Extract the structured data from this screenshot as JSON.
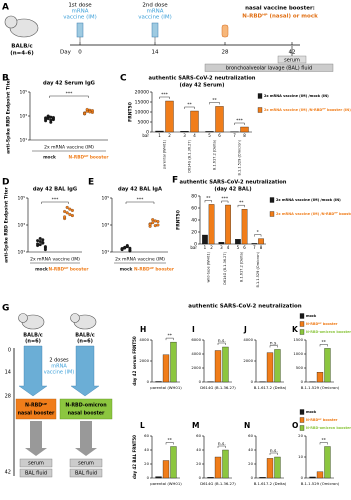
{
  "panel_a": {
    "letter": "A",
    "mouse": [
      "BALB/c",
      "(n=4-6)"
    ],
    "dose1": [
      "1st dose",
      "mRNA",
      "vaccine (IM)"
    ],
    "dose2": [
      "2nd dose",
      "mRNA",
      "vaccine (IM)"
    ],
    "booster_title": "nasal vaccine booster:",
    "booster": "N-RBDᴴᴾ (nasal) or mock",
    "day_label": "Day",
    "days": [
      "0",
      "14",
      "28",
      "42"
    ],
    "serum": "serum",
    "bal": "bronchoalveolar lavage (BAL) fluid"
  },
  "panel_g": {
    "letter": "G",
    "left_mouse": [
      "BALB/c",
      "(n=6)"
    ],
    "right_mouse": [
      "BALB/c",
      "(n=6)"
    ],
    "days": [
      "0",
      "14",
      "28",
      "42"
    ],
    "doses": [
      "2 doses",
      "mRNA",
      "vaccine (IM)"
    ],
    "left_booster": [
      "N-RBDᴴᴾ",
      "nasal booster"
    ],
    "right_booster": [
      "N-RBD-omicron",
      "nasal booster"
    ],
    "left_outputs": [
      "serum",
      "BAL fluid"
    ],
    "right_outputs": [
      "serum",
      "BAL fluid"
    ]
  },
  "row_title": "authentic SARS-CoV-2 neutralization",
  "chart_data": [
    {
      "type": "strip",
      "panel": "B",
      "title": "day 42 Serum IgG",
      "ylabel": "anti-Spike RBD Endpoint Titer",
      "xlabel": "2x mRNA vaccine (IM)",
      "categories": [
        "mock",
        "N-RBDᴴᴾ booster"
      ],
      "colors": [
        "#1a1a1a",
        "#f07d1a"
      ],
      "values": [
        [
          400,
          600,
          800,
          500,
          700,
          900,
          300,
          650,
          550,
          1000,
          450,
          750
        ],
        [
          1500,
          2500,
          3000,
          2000,
          1800,
          3500,
          2200,
          2800,
          1600
        ]
      ],
      "log": true,
      "ylim": [
        10,
        100000
      ],
      "yticks": [
        {
          "value": 10,
          "label": "10¹"
        },
        {
          "value": 1000,
          "label": "10³"
        },
        {
          "value": 100000,
          "label": "10⁵"
        }
      ],
      "significance": "***"
    },
    {
      "type": "bar",
      "panel": "C",
      "title": "authentic SARS-CoV-2 neutralization",
      "subtitle": "(day 42 Serum)",
      "ylabel": "FRNT50",
      "bar_label": "bar",
      "categories": [
        "parental (WH01)",
        "D614G (B.1.36.27)",
        "B.1.617.2 (Delta)",
        "B.1.1.529 (Omicron)"
      ],
      "bar_numbers": [
        "1",
        "2",
        "3",
        "4",
        "5",
        "6",
        "7",
        "8"
      ],
      "series": [
        {
          "name": "2x mRNA vaccine (IM) /mock (IN)",
          "color": "#1a1a1a",
          "values": [
            500,
            400,
            300,
            100
          ]
        },
        {
          "name": "2x mRNA vaccine (IM) /N-RBDᴴᴾ booster (IN)",
          "color": "#f07d1a",
          "values": [
            15500,
            10500,
            12800,
            2500
          ]
        }
      ],
      "ylim": [
        0,
        20000
      ],
      "yticks": [
        0,
        5000,
        10000,
        15000,
        20000
      ],
      "significance": [
        "***",
        "**",
        "**",
        "***"
      ]
    },
    {
      "type": "strip",
      "panel": "D",
      "title": "day 42 BAL IgG",
      "ylabel": "anti-Spike RBD Endpoint Titer",
      "xlabel": "2x mRNA vaccine (IM)",
      "categories": [
        "mock",
        "N-RBDᴴᴾ booster"
      ],
      "colors": [
        "#1a1a1a",
        "#f07d1a"
      ],
      "values": [
        [
          30,
          60,
          80,
          20,
          40,
          100,
          50,
          25,
          70,
          35,
          45,
          15
        ],
        [
          3000,
          8000,
          15000,
          5000,
          10000,
          20000,
          6000,
          12000,
          4000
        ]
      ],
      "log": true,
      "ylim": [
        10,
        100000
      ],
      "yticks": [
        {
          "value": 10,
          "label": "10¹"
        },
        {
          "value": 1000,
          "label": "10³"
        },
        {
          "value": 100000,
          "label": "10⁵"
        }
      ],
      "significance": "***"
    },
    {
      "type": "strip",
      "panel": "E",
      "title": "day 42 BAL IgA",
      "xlabel": "2x mRNA vaccine (IM)",
      "categories": [
        "mock",
        "N-RBDᴴᴾ booster"
      ],
      "colors": [
        "#1a1a1a",
        "#f07d1a"
      ],
      "values": [
        [
          15,
          20,
          25,
          12,
          18,
          22,
          30,
          14,
          16,
          20,
          26,
          19
        ],
        [
          800,
          1500,
          2000,
          1000,
          1200,
          2500,
          900,
          1800,
          1100
        ]
      ],
      "log": true,
      "ylim": [
        10,
        100000
      ],
      "yticks": [
        {
          "value": 10,
          "label": "10¹"
        },
        {
          "value": 1000,
          "label": "10³"
        },
        {
          "value": 100000,
          "label": "10⁵"
        }
      ],
      "significance": "***"
    },
    {
      "type": "bar",
      "panel": "F",
      "title": "authentic SARS-CoV-2 neutralization",
      "subtitle": "(day 42 BAL)",
      "ylabel": "FRNT50",
      "bar_label": "bar",
      "categories": [
        "wild-type (WH01)",
        "D614G (B.1.36.27)",
        "B.1.617.2 (Delta)",
        "B.1.1.529 (Omicron)"
      ],
      "bar_numbers": [
        "1",
        "2",
        "3",
        "4",
        "5",
        "6",
        "7",
        "8"
      ],
      "series": [
        {
          "name": "2x mRNA vaccine (IM) /mock (IN)",
          "color": "#1a1a1a",
          "values": [
            15,
            3,
            8,
            1
          ]
        },
        {
          "name": "2x mRNA vaccine (IM) /N-RBDᴴᴾ booster (IN)",
          "color": "#f07d1a",
          "values": [
            66,
            65,
            58,
            9
          ]
        }
      ],
      "ylim": [
        0,
        80
      ],
      "yticks": [
        0,
        20,
        40,
        60,
        80
      ],
      "significance": [
        "**",
        "***",
        "**",
        "*"
      ]
    },
    {
      "type": "bar",
      "panel": "H",
      "ylabel": "day 42 serum FRNT50",
      "categories": [
        "parental (WH01)"
      ],
      "series": [
        {
          "color": "#1a1a1a",
          "values": [
            50
          ]
        },
        {
          "color": "#f07d1a",
          "values": [
            2600
          ]
        },
        {
          "color": "#8cc63f",
          "values": [
            3800
          ]
        }
      ],
      "ylim": [
        0,
        4000
      ],
      "yticks": [
        0,
        2000,
        4000
      ],
      "significance": "**"
    },
    {
      "type": "bar",
      "panel": "I",
      "categories": [
        "D614G (B.1.36.27)"
      ],
      "series": [
        {
          "color": "#1a1a1a",
          "values": [
            40
          ]
        },
        {
          "color": "#f07d1a",
          "values": [
            4500
          ]
        },
        {
          "color": "#8cc63f",
          "values": [
            5000
          ]
        }
      ],
      "ylim": [
        0,
        6000
      ],
      "yticks": [
        0,
        2000,
        4000,
        6000
      ],
      "significance": "n.s."
    },
    {
      "type": "bar",
      "panel": "J",
      "categories": [
        "B.1.617.2 (Delta)"
      ],
      "series": [
        {
          "color": "#1a1a1a",
          "values": [
            30
          ]
        },
        {
          "color": "#f07d1a",
          "values": [
            2800
          ]
        },
        {
          "color": "#8cc63f",
          "values": [
            3100
          ]
        }
      ],
      "ylim": [
        0,
        4000
      ],
      "yticks": [
        0,
        2000,
        4000
      ],
      "significance": "n.s."
    },
    {
      "type": "bar",
      "panel": "K",
      "categories": [
        "B.1.1.529 (Omicron)"
      ],
      "series": [
        {
          "name": "mock",
          "color": "#1a1a1a",
          "values": [
            10
          ]
        },
        {
          "name": "N-RBDᴴᴾ booster",
          "color": "#f07d1a",
          "values": [
            350
          ]
        },
        {
          "name": "N-RBD-omicron booster",
          "color": "#8cc63f",
          "values": [
            1200
          ]
        }
      ],
      "ylim": [
        0,
        1500
      ],
      "yticks": [
        0,
        500,
        1000,
        1500
      ],
      "significance": "**"
    },
    {
      "type": "bar",
      "panel": "L",
      "ylabel": "day 42 BAL FRNT50",
      "categories": [
        "parental (WH01)"
      ],
      "series": [
        {
          "color": "#1a1a1a",
          "values": [
            2
          ]
        },
        {
          "color": "#f07d1a",
          "values": [
            25
          ]
        },
        {
          "color": "#8cc63f",
          "values": [
            45
          ]
        }
      ],
      "ylim": [
        0,
        60
      ],
      "yticks": [
        0,
        20,
        40,
        60
      ],
      "significance": "**"
    },
    {
      "type": "bar",
      "panel": "M",
      "categories": [
        "D614G (B.1.36.27)"
      ],
      "series": [
        {
          "color": "#1a1a1a",
          "values": [
            1
          ]
        },
        {
          "color": "#f07d1a",
          "values": [
            30
          ]
        },
        {
          "color": "#8cc63f",
          "values": [
            40
          ]
        }
      ],
      "ylim": [
        0,
        60
      ],
      "yticks": [
        0,
        20,
        40,
        60
      ],
      "significance": "n.s."
    },
    {
      "type": "bar",
      "panel": "N",
      "categories": [
        "B.1.617.2 (Delta)"
      ],
      "series": [
        {
          "color": "#1a1a1a",
          "values": [
            1
          ]
        },
        {
          "color": "#f07d1a",
          "values": [
            28
          ]
        },
        {
          "color": "#8cc63f",
          "values": [
            30
          ]
        }
      ],
      "ylim": [
        0,
        60
      ],
      "yticks": [
        0,
        20,
        40,
        60
      ],
      "significance": "n.s."
    },
    {
      "type": "bar",
      "panel": "O",
      "categories": [
        "B.1.1.529 (Omicron)"
      ],
      "series": [
        {
          "name": "mock",
          "color": "#1a1a1a",
          "values": [
            0.5
          ]
        },
        {
          "name": "N-RBDᴴᴾ booster",
          "color": "#f07d1a",
          "values": [
            3
          ]
        },
        {
          "name": "N-RBD-omicron booster",
          "color": "#8cc63f",
          "values": [
            15
          ]
        }
      ],
      "ylim": [
        0,
        20
      ],
      "yticks": [
        0,
        10,
        20
      ],
      "significance": "**"
    }
  ]
}
